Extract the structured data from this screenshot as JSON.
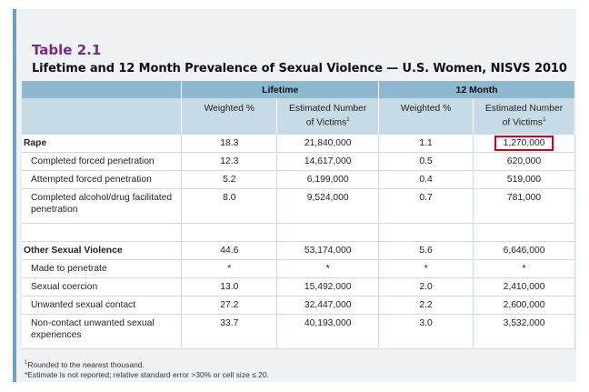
{
  "table_label": "Table 2.1",
  "table_title": "Lifetime and 12 Month Prevalence of Sexual Violence — U.S. Women, NISVS 2010",
  "groups": {
    "lifetime": "Lifetime",
    "twelve_month": "12 Month"
  },
  "col_headers": {
    "weighted": "Weighted %",
    "est_line1": "Estimated Number",
    "est_line2": "of Victims",
    "est_sup": "1"
  },
  "rows": [
    {
      "label": "Rape",
      "lw": "18.3",
      "ln": "21,840,000",
      "mw": "1.1",
      "mn": "1,270,000"
    },
    {
      "label": "Completed forced penetration",
      "lw": "12.3",
      "ln": "14,617,000",
      "mw": "0.5",
      "mn": "620,000"
    },
    {
      "label": "Attempted forced penetration",
      "lw": "5.2",
      "ln": "6,199,000",
      "mw": "0.4",
      "mn": "519,000"
    },
    {
      "label_line1": "Completed alcohol/drug facilitated",
      "label_line2": "penetration",
      "lw": "8.0",
      "ln": "9,524,000",
      "mw": "0.7",
      "mn": "781,000"
    },
    {
      "label": "Other Sexual Violence",
      "lw": "44.6",
      "ln": "53,174,000",
      "mw": "5.6",
      "mn": "6,646,000"
    },
    {
      "label": "Made to penetrate",
      "lw": "*",
      "ln": "*",
      "mw": "*",
      "mn": "*"
    },
    {
      "label": "Sexual coercion",
      "lw": "13.0",
      "ln": "15,492,000",
      "mw": "2.0",
      "mn": "2,410,000"
    },
    {
      "label": "Unwanted sexual contact",
      "lw": "27.2",
      "ln": "32,447,000",
      "mw": "2.2",
      "mn": "2,600,000"
    },
    {
      "label_line1": "Non-contact unwanted sexual",
      "label_line2": "experiences",
      "lw": "33.7",
      "ln": "40,193,000",
      "mw": "3.0",
      "mn": "3,532,000"
    }
  ],
  "highlight_color": "#d9001b",
  "footnote_sup": "1",
  "footnotes": {
    "rounded": "Rounded to the nearest thousand.",
    "estimate": "*Estimate is not reported; relative standard error >30% or cell size ≤ 20."
  }
}
